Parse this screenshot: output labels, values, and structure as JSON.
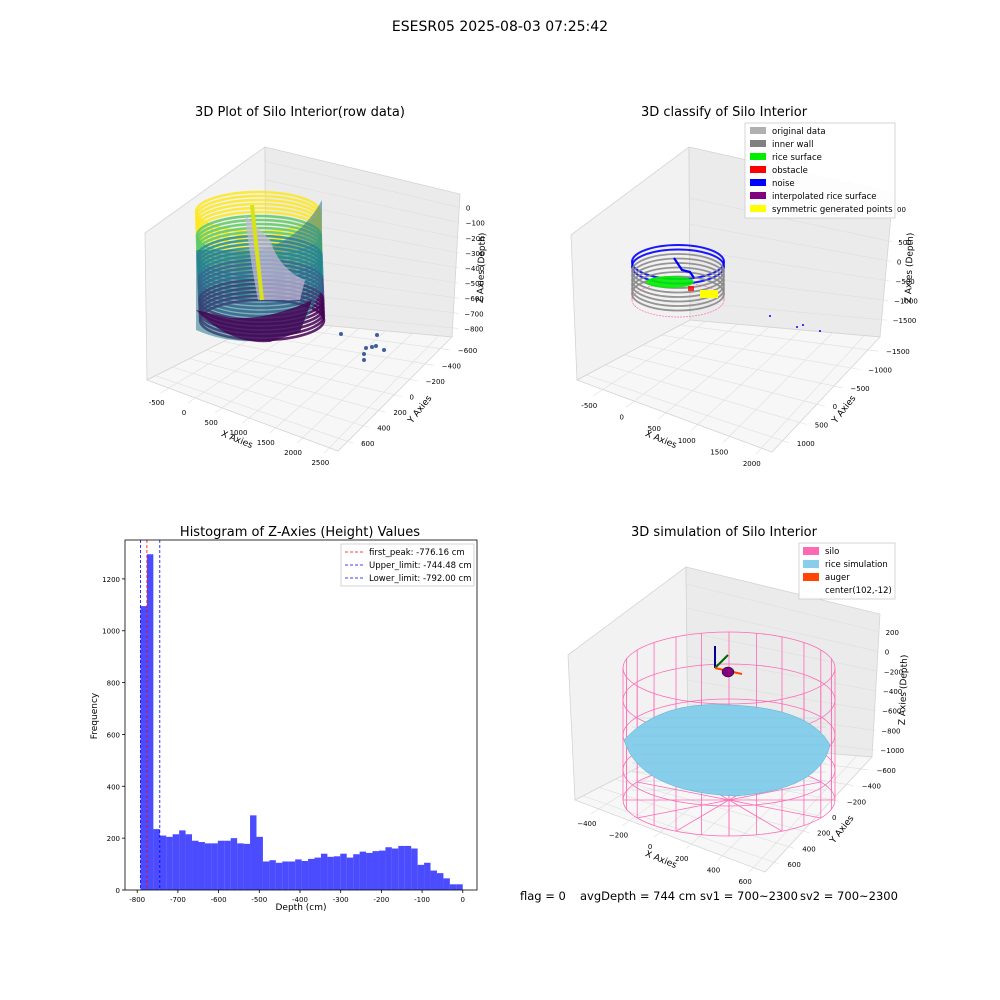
{
  "suptitle": "ESESR05 2025-08-03 07:25:42",
  "panels": {
    "raw": {
      "title": "3D Plot of Silo Interior(row data)",
      "xlabel": "X Axies",
      "ylabel": "Y Axies",
      "zlabel": "Z Axies (Depth)",
      "xticks": [
        "-500",
        "0",
        "500",
        "1000",
        "1500",
        "2000",
        "2500"
      ],
      "yticks": [
        "600",
        "400",
        "200",
        "0",
        "−200",
        "−400",
        "−600"
      ],
      "zticks": [
        "0",
        "−100",
        "−200",
        "−300",
        "−400",
        "−500",
        "−600",
        "−700",
        "−800"
      ],
      "colormap": "viridis"
    },
    "classify": {
      "title": "3D classify of Silo Interior",
      "xlabel": "X Axies",
      "ylabel": "Y Axies",
      "zlabel": "Z Axies (Depth)",
      "xticks": [
        "-500",
        "0",
        "500",
        "1000",
        "1500",
        "2000"
      ],
      "yticks": [
        "1000",
        "500",
        "0",
        "−500",
        "−1000",
        "−1500"
      ],
      "zticks": [
        "500",
        "0",
        "−500",
        "−1000",
        "−1500"
      ],
      "legend": [
        {
          "label": "original data",
          "color": "#b0b0b0"
        },
        {
          "label": "inner wall",
          "color": "#808080"
        },
        {
          "label": "rice surface",
          "color": "#00ee00"
        },
        {
          "label": "obstacle",
          "color": "#ff0000"
        },
        {
          "label": "noise",
          "color": "#0000ff"
        },
        {
          "label": "interpolated rice surface",
          "color": "#800080"
        },
        {
          "label": "symmetric generated points",
          "color": "#ffff00"
        }
      ],
      "legend_cut_ticks": [
        "00"
      ]
    },
    "simulation": {
      "title": "3D simulation of Silo Interior",
      "xlabel": "X Axies",
      "ylabel": "Y Axies",
      "zlabel": "Z Axies (Depth)",
      "xticks": [
        "−400",
        "−200",
        "0",
        "200",
        "400",
        "600"
      ],
      "yticks": [
        "600",
        "400",
        "200",
        "0",
        "−200",
        "−400",
        "−600"
      ],
      "zticks": [
        "200",
        "0",
        "−200",
        "−400",
        "−600",
        "−800",
        "−1000"
      ],
      "legend": [
        {
          "label": "silo",
          "color": "#ff69b4"
        },
        {
          "label": "rice simulation",
          "color": "#87ceeb"
        },
        {
          "label": "auger",
          "color": "#ff4500"
        },
        {
          "label": "center(102,-12)",
          "color": "none"
        }
      ]
    }
  },
  "footer": {
    "flag": "flag = 0",
    "avgDepth": "avgDepth = 744 cm",
    "sv1": "sv1 = 700~2300",
    "sv2": "sv2 = 700~2300"
  },
  "chart_data": [
    {
      "type": "scatter",
      "title": "3D Plot of Silo Interior(row data)",
      "xlabel": "X Axies",
      "ylabel": "Y Axies",
      "zlabel": "Z Axies (Depth)",
      "xlim": [
        -600,
        2600
      ],
      "ylim": [
        -700,
        700
      ],
      "zlim": [
        -850,
        50
      ],
      "colormap": "viridis"
    },
    {
      "type": "scatter",
      "title": "3D classify of Silo Interior",
      "xlabel": "X Axies",
      "ylabel": "Y Axies",
      "zlabel": "Z Axies (Depth)",
      "xlim": [
        -600,
        2300
      ],
      "ylim": [
        -1600,
        1200
      ],
      "zlim": [
        -1700,
        700
      ],
      "legend_placement": "top-right"
    },
    {
      "type": "bar",
      "title": "Histogram of Z-Axies (Height) Values",
      "xlabel": "Depth (cm)",
      "ylabel": "Frequency",
      "xlim": [
        -830,
        35
      ],
      "ylim": [
        0,
        1350
      ],
      "xticks": [
        -800,
        -700,
        -600,
        -500,
        -400,
        -300,
        -200,
        -100,
        0
      ],
      "yticks": [
        0,
        200,
        400,
        600,
        800,
        1000,
        1200
      ],
      "bar_color": "#0000ff",
      "bins_start": -792,
      "bin_width": 15.84,
      "values": [
        1095,
        1295,
        235,
        210,
        205,
        215,
        230,
        215,
        190,
        185,
        180,
        180,
        190,
        190,
        200,
        180,
        178,
        288,
        205,
        110,
        115,
        105,
        110,
        110,
        118,
        112,
        120,
        125,
        140,
        128,
        130,
        140,
        125,
        138,
        148,
        143,
        150,
        152,
        165,
        160,
        170,
        170,
        160,
        97,
        105,
        75,
        65,
        45,
        22,
        22
      ],
      "lines": [
        {
          "label": "first_peak: -776.16 cm",
          "x": -776.16,
          "color": "#ff0000"
        },
        {
          "label": "Upper_limit: -744.48 cm",
          "x": -744.48,
          "color": "#0000ff"
        },
        {
          "label": "Lower_limit: -792.00 cm",
          "x": -792.0,
          "color": "#0000ff"
        }
      ],
      "legend_placement": "top-right"
    },
    {
      "type": "scatter",
      "title": "3D simulation of Silo Interior",
      "xlabel": "X Axies",
      "ylabel": "Y Axies",
      "zlabel": "Z Axies (Depth)",
      "xlim": [
        -500,
        700
      ],
      "ylim": [
        -700,
        700
      ],
      "zlim": [
        -1050,
        300
      ],
      "center": [
        102,
        -12
      ],
      "legend_placement": "top-right"
    }
  ]
}
